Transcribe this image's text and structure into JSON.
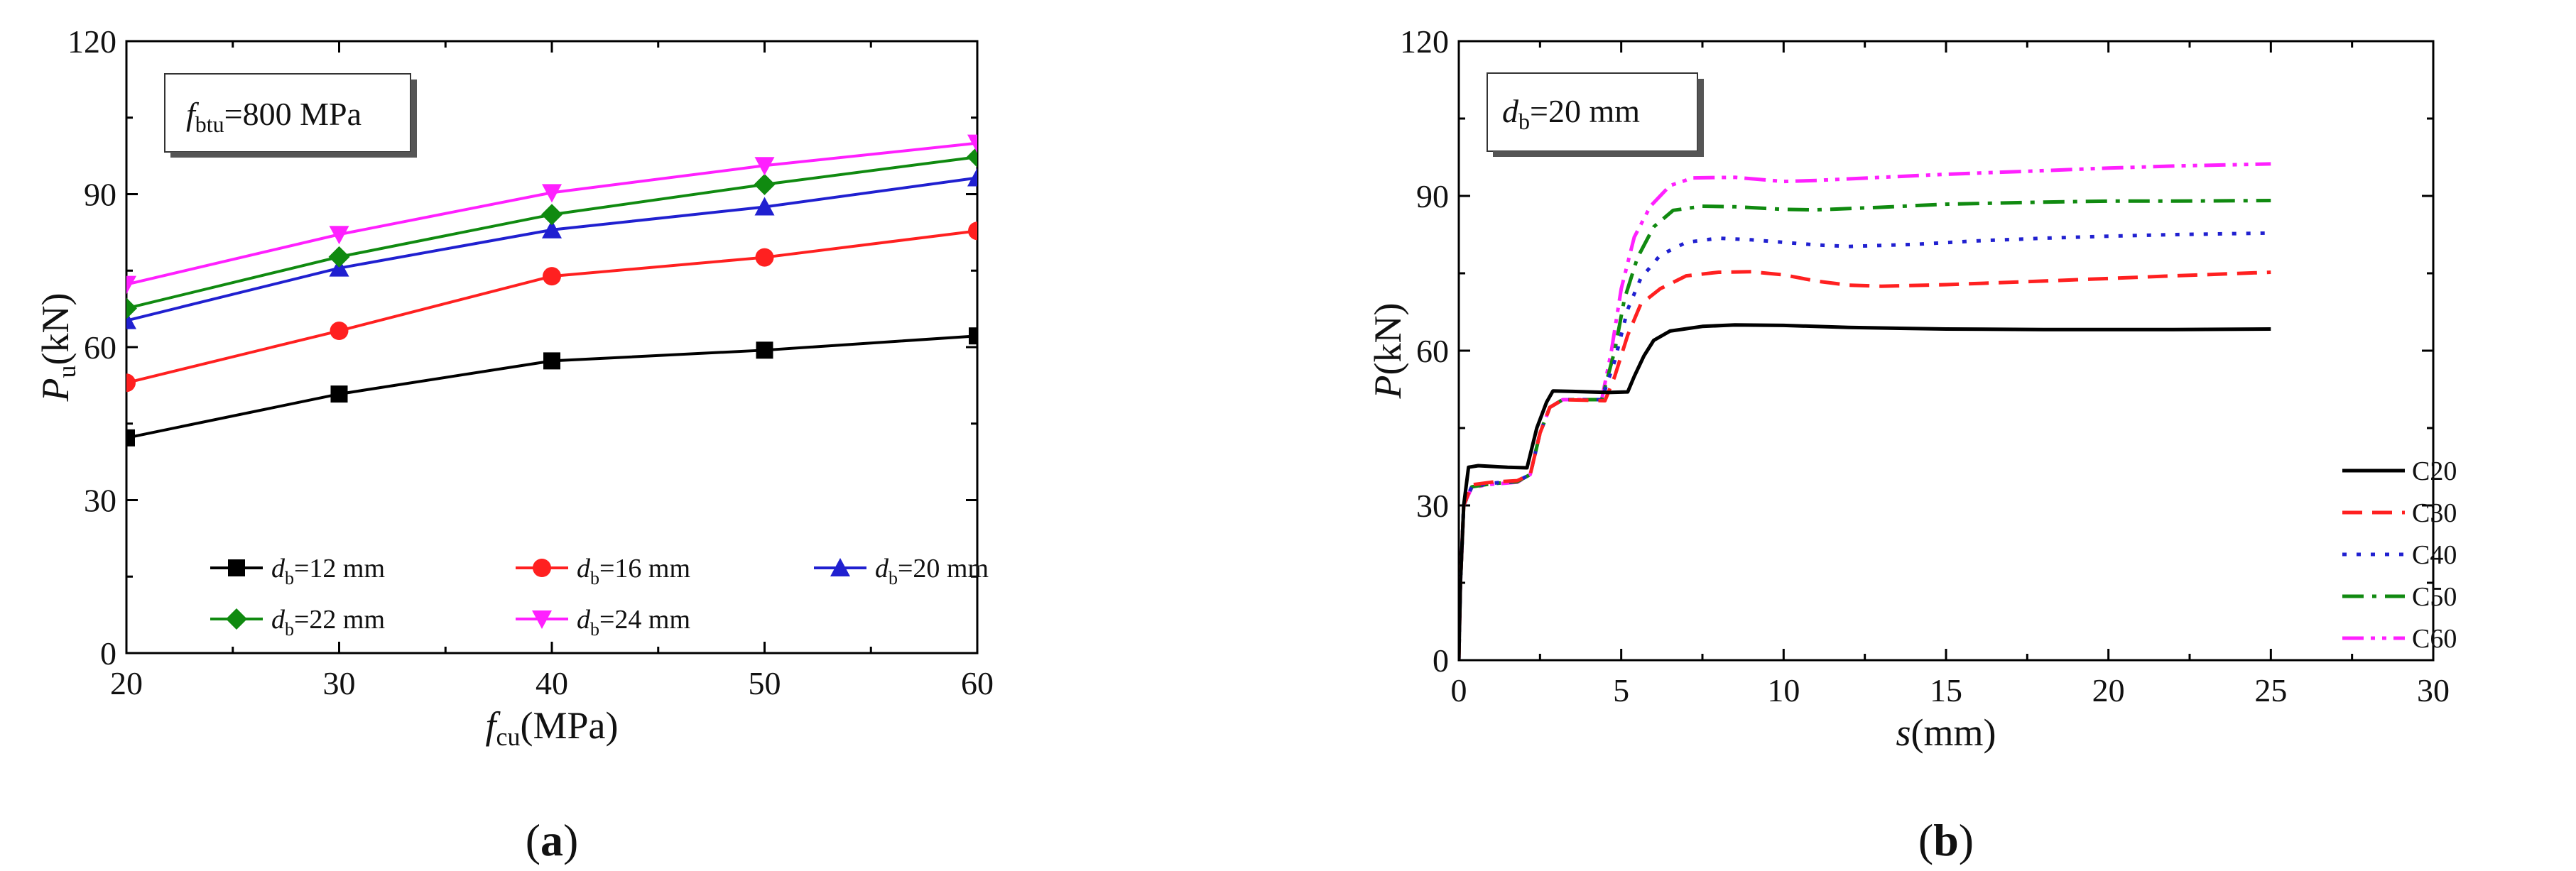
{
  "chart_data": [
    {
      "type": "line",
      "panel_label": {
        "open": "(",
        "letter": "a",
        "close": ")"
      },
      "annotation": {
        "symbol": "f",
        "sub": "btu",
        "value": "=800 MPa"
      },
      "xlabel": {
        "symbol": "f",
        "sub": "cu",
        "unit": "(MPa)"
      },
      "ylabel": {
        "symbol": "P",
        "sub": "u",
        "unit": "(kN)"
      },
      "xlim": [
        20,
        60
      ],
      "ylim": [
        0,
        120
      ],
      "xticks": [
        "20",
        "30",
        "40",
        "50",
        "60"
      ],
      "yticks": [
        "0",
        "30",
        "60",
        "90",
        "120"
      ],
      "legend_position": "lower-center",
      "x": [
        20,
        30,
        40,
        50,
        60
      ],
      "series": [
        {
          "symbol": "d",
          "sub": "b",
          "value": "=12 mm",
          "color": "#000000",
          "marker": "square",
          "values": [
            42.2,
            50.8,
            57.3,
            59.4,
            62.2
          ]
        },
        {
          "symbol": "d",
          "sub": "b",
          "value": "=16 mm",
          "color": "#ff2020",
          "marker": "circle",
          "values": [
            53.0,
            63.2,
            73.9,
            77.6,
            82.8
          ]
        },
        {
          "symbol": "d",
          "sub": "b",
          "value": "=20 mm",
          "color": "#2020d0",
          "marker": "triangle-up",
          "values": [
            65.2,
            75.5,
            83.0,
            87.5,
            93.2
          ]
        },
        {
          "symbol": "d",
          "sub": "b",
          "value": "=22 mm",
          "color": "#108a10",
          "marker": "diamond",
          "values": [
            67.6,
            77.7,
            86.0,
            91.9,
            97.3
          ]
        },
        {
          "symbol": "d",
          "sub": "b",
          "value": "=24 mm",
          "color": "#ff20ff",
          "marker": "triangle-down",
          "values": [
            72.3,
            82.1,
            90.3,
            95.6,
            100.0
          ]
        }
      ]
    },
    {
      "type": "line",
      "panel_label": {
        "open": "(",
        "letter": "b",
        "close": ")"
      },
      "annotation": {
        "symbol": "d",
        "sub": "b",
        "value": "=20 mm"
      },
      "xlabel": {
        "symbol": "s",
        "sub": "",
        "unit": "(mm)"
      },
      "ylabel": {
        "symbol": "P",
        "sub": "",
        "unit": "(kN)"
      },
      "xlim": [
        0,
        30
      ],
      "ylim": [
        0,
        120
      ],
      "xticks": [
        "0",
        "5",
        "10",
        "15",
        "20",
        "25",
        "30"
      ],
      "yticks": [
        "0",
        "30",
        "60",
        "90",
        "120"
      ],
      "legend_position": "lower-right",
      "series": [
        {
          "name": "C20",
          "color": "#000000",
          "dash": "solid",
          "points": [
            [
              0,
              0
            ],
            [
              0.05,
              15
            ],
            [
              0.15,
              30
            ],
            [
              0.3,
              37.4
            ],
            [
              0.6,
              37.7
            ],
            [
              1.5,
              37.4
            ],
            [
              2.1,
              37.3
            ],
            [
              2.4,
              45
            ],
            [
              2.7,
              50
            ],
            [
              2.9,
              52.2
            ],
            [
              3.5,
              52.1
            ],
            [
              4.6,
              51.9
            ],
            [
              5.2,
              52
            ],
            [
              5.4,
              55
            ],
            [
              5.7,
              59
            ],
            [
              6.0,
              62
            ],
            [
              6.5,
              63.8
            ],
            [
              7.5,
              64.7
            ],
            [
              8.5,
              65.0
            ],
            [
              10,
              64.9
            ],
            [
              12,
              64.5
            ],
            [
              15,
              64.2
            ],
            [
              18,
              64.1
            ],
            [
              20,
              64.1
            ],
            [
              22,
              64.1
            ],
            [
              25,
              64.2
            ]
          ]
        },
        {
          "name": "C30",
          "color": "#ff2020",
          "dash": "longdash",
          "points": [
            [
              0,
              0
            ],
            [
              0.05,
              15
            ],
            [
              0.15,
              30
            ],
            [
              0.4,
              34.0
            ],
            [
              1,
              34.5
            ],
            [
              1.8,
              34.8
            ],
            [
              2.2,
              36
            ],
            [
              2.5,
              44
            ],
            [
              2.8,
              49
            ],
            [
              3.2,
              50.5
            ],
            [
              4.5,
              50.3
            ],
            [
              4.8,
              55
            ],
            [
              5.2,
              63
            ],
            [
              5.6,
              69
            ],
            [
              6.2,
              72
            ],
            [
              7.0,
              74.5
            ],
            [
              8.0,
              75.2
            ],
            [
              9.0,
              75.3
            ],
            [
              10,
              74.7
            ],
            [
              11,
              73.5
            ],
            [
              12,
              72.7
            ],
            [
              13,
              72.5
            ],
            [
              15,
              72.8
            ],
            [
              18,
              73.5
            ],
            [
              20,
              74.0
            ],
            [
              22,
              74.5
            ],
            [
              25,
              75.2
            ]
          ]
        },
        {
          "name": "C40",
          "color": "#2020d0",
          "dash": "dotted",
          "points": [
            [
              0,
              0
            ],
            [
              0.05,
              15
            ],
            [
              0.15,
              30
            ],
            [
              0.4,
              33.7
            ],
            [
              1,
              34.3
            ],
            [
              1.8,
              34.7
            ],
            [
              2.2,
              36
            ],
            [
              2.5,
              44
            ],
            [
              2.8,
              49
            ],
            [
              3.2,
              50.5
            ],
            [
              4.4,
              50.5
            ],
            [
              4.8,
              58
            ],
            [
              5.2,
              68
            ],
            [
              5.6,
              74
            ],
            [
              6.2,
              78.5
            ],
            [
              7.0,
              81.0
            ],
            [
              8.0,
              81.8
            ],
            [
              9.0,
              81.5
            ],
            [
              10,
              81.0
            ],
            [
              11,
              80.5
            ],
            [
              12,
              80.2
            ],
            [
              14,
              80.6
            ],
            [
              16,
              81.3
            ],
            [
              18,
              81.8
            ],
            [
              20,
              82.2
            ],
            [
              22,
              82.5
            ],
            [
              25,
              82.8
            ]
          ]
        },
        {
          "name": "C50",
          "color": "#108a10",
          "dash": "dashdot",
          "points": [
            [
              0,
              0
            ],
            [
              0.05,
              15
            ],
            [
              0.15,
              30
            ],
            [
              0.4,
              33.6
            ],
            [
              1,
              34.2
            ],
            [
              1.8,
              34.6
            ],
            [
              2.2,
              36
            ],
            [
              2.5,
              44
            ],
            [
              2.8,
              49
            ],
            [
              3.2,
              50.5
            ],
            [
              4.4,
              50.5
            ],
            [
              4.8,
              60
            ],
            [
              5.1,
              70
            ],
            [
              5.5,
              78
            ],
            [
              6.0,
              84
            ],
            [
              6.6,
              87.2
            ],
            [
              7.5,
              88.0
            ],
            [
              8.5,
              87.9
            ],
            [
              10,
              87.4
            ],
            [
              11,
              87.3
            ],
            [
              13,
              87.8
            ],
            [
              15,
              88.4
            ],
            [
              18,
              88.8
            ],
            [
              20,
              89.0
            ],
            [
              22,
              89.0
            ],
            [
              25,
              89.1
            ]
          ]
        },
        {
          "name": "C60",
          "color": "#ff20ff",
          "dash": "dashdotdot",
          "points": [
            [
              0,
              0
            ],
            [
              0.05,
              15
            ],
            [
              0.15,
              30
            ],
            [
              0.4,
              33.5
            ],
            [
              1,
              34.1
            ],
            [
              1.8,
              34.5
            ],
            [
              2.2,
              36
            ],
            [
              2.5,
              44
            ],
            [
              2.8,
              49
            ],
            [
              3.2,
              50.5
            ],
            [
              4.4,
              50.5
            ],
            [
              4.7,
              60
            ],
            [
              5.0,
              72
            ],
            [
              5.4,
              82
            ],
            [
              5.9,
              88
            ],
            [
              6.5,
              92
            ],
            [
              7.2,
              93.5
            ],
            [
              8.5,
              93.6
            ],
            [
              10,
              92.8
            ],
            [
              11,
              93.0
            ],
            [
              13,
              93.6
            ],
            [
              15,
              94.2
            ],
            [
              18,
              94.9
            ],
            [
              20,
              95.4
            ],
            [
              22,
              95.8
            ],
            [
              25,
              96.2
            ]
          ]
        }
      ]
    }
  ]
}
